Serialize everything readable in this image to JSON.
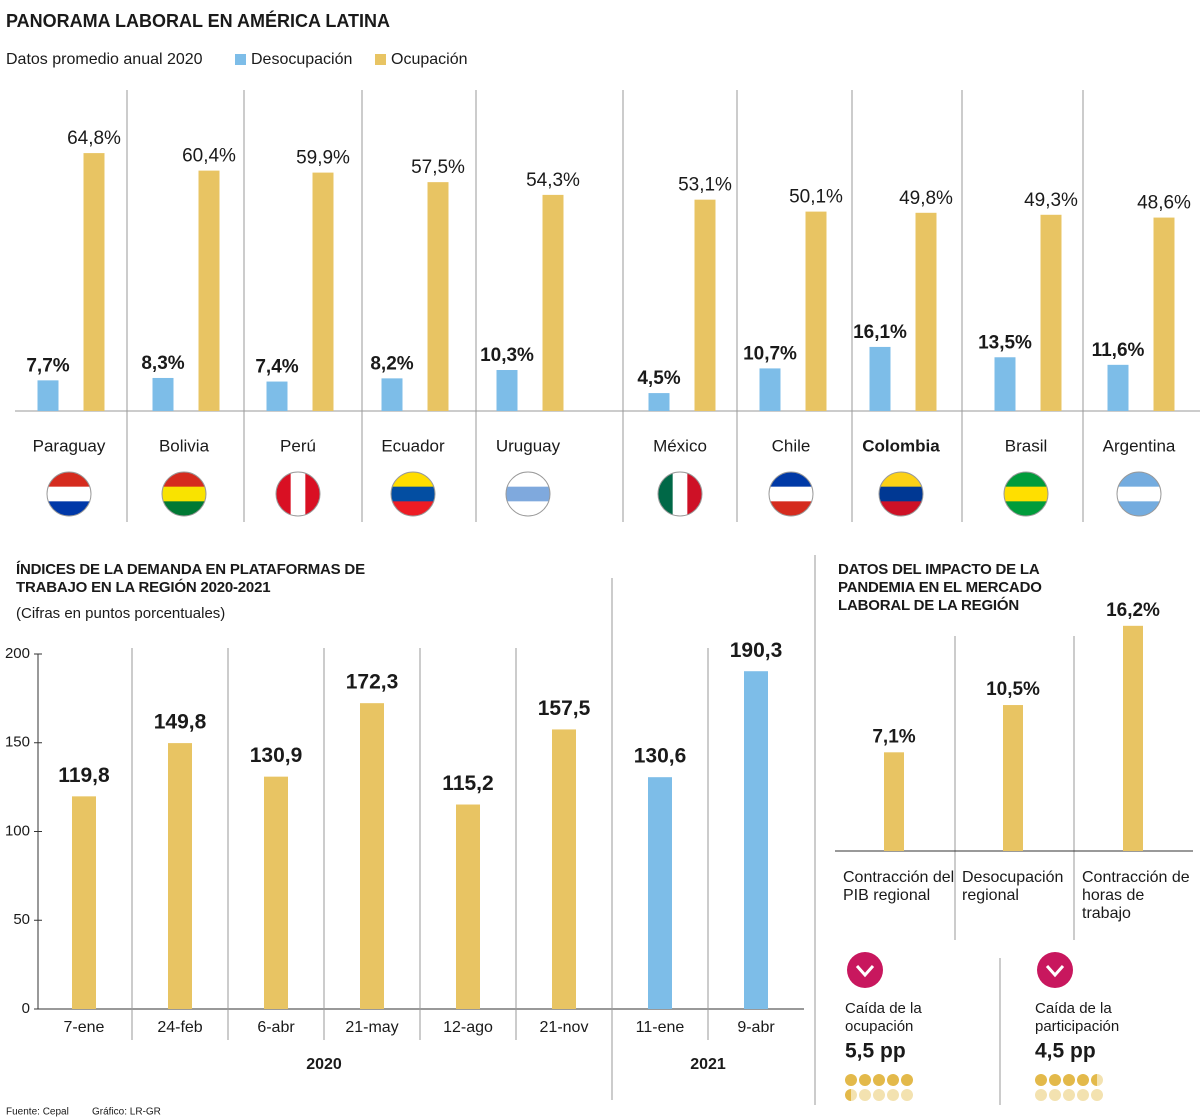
{
  "chart_data": [
    {
      "type": "grouped-bar",
      "title": "PANORAMA LABORAL EN AMÉRICA LATINA",
      "subtitle": "Datos promedio anual 2020",
      "categories": [
        "Paraguay",
        "Bolivia",
        "Perú",
        "Ecuador",
        "Uruguay",
        "México",
        "Chile",
        "Colombia",
        "Brasil",
        "Argentina"
      ],
      "series": [
        {
          "name": "Desocupación",
          "color": "#7dbde8",
          "values": [
            7.7,
            8.3,
            7.4,
            8.2,
            10.3,
            4.5,
            10.7,
            16.1,
            13.5,
            11.6
          ],
          "value_labels": [
            "7,7%",
            "8,3%",
            "7,4%",
            "8,2%",
            "10,3%",
            "4,5%",
            "10,7%",
            "16,1%",
            "13,5%",
            "11,6%"
          ]
        },
        {
          "name": "Ocupación",
          "color": "#e8c463",
          "values": [
            64.8,
            60.4,
            59.9,
            57.5,
            54.3,
            53.1,
            50.1,
            49.8,
            49.3,
            48.6
          ],
          "value_labels": [
            "64,8%",
            "60,4%",
            "59,9%",
            "57,5%",
            "54,3%",
            "53,1%",
            "50,1%",
            "49,8%",
            "49,3%",
            "48,6%"
          ]
        }
      ]
    },
    {
      "type": "bar",
      "title": "ÍNDICES DE LA DEMANDA EN PLATAFORMAS DE TRABAJO EN LA REGIÓN 2020-2021",
      "subtitle": "(Cifras en puntos porcentuales)",
      "categories": [
        "7-ene",
        "24-feb",
        "6-abr",
        "21-may",
        "12-ago",
        "21-nov",
        "11-ene",
        "9-abr"
      ],
      "series": [
        {
          "name": "2020",
          "color": "#e8c463",
          "values": [
            119.8,
            149.8,
            130.9,
            172.3,
            115.2,
            157.5,
            null,
            null
          ],
          "value_labels": [
            "119,8",
            "149,8",
            "130,9",
            "172,3",
            "115,2",
            "157,5",
            null,
            null
          ]
        },
        {
          "name": "2021",
          "color": "#7dbde8",
          "values": [
            null,
            null,
            null,
            null,
            null,
            null,
            130.6,
            190.3
          ],
          "value_labels": [
            null,
            null,
            null,
            null,
            null,
            null,
            "130,6",
            "190,3"
          ]
        }
      ],
      "ylim": [
        0,
        200
      ],
      "yticks": [
        0,
        50,
        100,
        150,
        200
      ]
    },
    {
      "type": "bar",
      "title": "DATOS DEL IMPACTO DE LA PANDEMIA EN EL MERCADO LABORAL DE LA REGIÓN",
      "categories": [
        "Contracción del PIB regional",
        "Desocupación regional",
        "Contracción de horas de trabajo"
      ],
      "values": [
        7.1,
        10.5,
        16.2
      ],
      "value_labels": [
        "7,1%",
        "10,5%",
        "16,2%"
      ],
      "color": "#e8c463"
    }
  ],
  "stats": [
    {
      "label": "Caída de la ocupación",
      "value": 5.5,
      "value_label": "5,5 pp"
    },
    {
      "label": "Caída de la participación",
      "value": 4.5,
      "value_label": "4,5 pp"
    }
  ],
  "footer": {
    "source": "Fuente: Cepal",
    "credit": "Gráfico: LR-GR"
  }
}
